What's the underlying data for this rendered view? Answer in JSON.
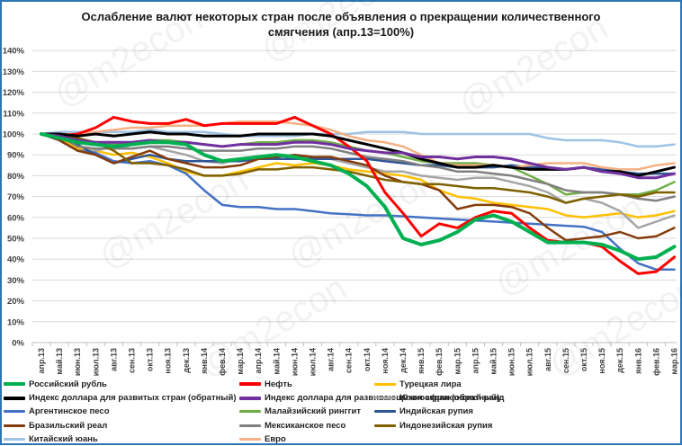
{
  "title_line1": "Ослабление валют некоторых стран после объявления о прекращении количественного",
  "title_line2": "смягчения  (апр.13=100%)",
  "watermark": "@m2econ",
  "chart_data": {
    "type": "line",
    "title": "Ослабление валют некоторых стран после объявления о прекращении количественного смягчения (апр.13=100%)",
    "xlabel": "",
    "ylabel": "",
    "ylim": [
      0,
      140
    ],
    "yticks": [
      "0%",
      "10%",
      "20%",
      "30%",
      "40%",
      "50%",
      "60%",
      "70%",
      "80%",
      "90%",
      "100%",
      "110%",
      "120%",
      "130%",
      "140%"
    ],
    "grid": true,
    "legend_position": "bottom",
    "categories": [
      "апр.13",
      "май.13",
      "июн.13",
      "июл.13",
      "авг.13",
      "сен.13",
      "окт.13",
      "ноя.13",
      "дек.13",
      "янв.14",
      "фев.14",
      "мар.14",
      "апр.14",
      "май.14",
      "июн.14",
      "июл.14",
      "авг.14",
      "сен.14",
      "окт.14",
      "ноя.14",
      "дек.14",
      "янв.15",
      "фев.15",
      "мар.15",
      "апр.15",
      "май.15",
      "июн.15",
      "июл.15",
      "авг.15",
      "сен.15",
      "окт.15",
      "ноя.15",
      "дек.15",
      "янв.16",
      "фев.16",
      "мар.16"
    ],
    "series": [
      {
        "name": "Российский рубль",
        "color": "#00b050",
        "width": 4,
        "values": [
          100,
          98,
          96,
          95,
          94,
          95,
          96,
          96,
          95,
          90,
          87,
          88,
          89,
          90,
          89,
          87,
          85,
          81,
          75,
          65,
          50,
          47,
          49,
          53,
          59,
          61,
          58,
          53,
          48,
          48,
          48,
          47,
          44,
          40,
          41,
          46
        ]
      },
      {
        "name": "Нефть",
        "color": "#ff0000",
        "width": 3,
        "values": [
          100,
          99,
          100,
          103,
          108,
          106,
          105,
          105,
          107,
          104,
          105,
          105,
          105,
          105,
          108,
          104,
          100,
          94,
          87,
          72,
          62,
          51,
          57,
          55,
          60,
          63,
          62,
          55,
          49,
          48,
          48,
          46,
          39,
          33,
          34,
          41
        ]
      },
      {
        "name": "Турецкая лира",
        "color": "#ffc000",
        "width": 2.5,
        "values": [
          100,
          98,
          93,
          92,
          90,
          91,
          89,
          86,
          82,
          80,
          80,
          82,
          84,
          86,
          85,
          86,
          85,
          83,
          82,
          81,
          80,
          78,
          73,
          70,
          69,
          67,
          66,
          65,
          64,
          61,
          60,
          61,
          62,
          60,
          61,
          63
        ]
      },
      {
        "name": "Индекс доллара для развитых стран (обратный)",
        "color": "#000000",
        "width": 3,
        "values": [
          100,
          100,
          99,
          100,
          99,
          100,
          101,
          100,
          100,
          99,
          99,
          99,
          100,
          100,
          100,
          100,
          99,
          97,
          95,
          93,
          91,
          88,
          86,
          84,
          84,
          85,
          84,
          83,
          83,
          83,
          84,
          82,
          82,
          80,
          82,
          84
        ]
      },
      {
        "name": "Индекс доллара для развивающихся стран (обратный)",
        "color": "#7030a0",
        "width": 3,
        "values": [
          100,
          99,
          97,
          96,
          96,
          96,
          97,
          96,
          96,
          95,
          94,
          95,
          95,
          95,
          96,
          96,
          95,
          93,
          92,
          91,
          91,
          89,
          89,
          88,
          89,
          89,
          88,
          86,
          84,
          83,
          84,
          82,
          81,
          79,
          79,
          81
        ]
      },
      {
        "name": "Южноафриканский ранд",
        "color": "#a6a6a6",
        "width": 2.5,
        "values": [
          100,
          97,
          92,
          92,
          94,
          93,
          94,
          92,
          90,
          87,
          86,
          88,
          89,
          90,
          89,
          89,
          88,
          86,
          84,
          82,
          82,
          80,
          79,
          78,
          79,
          79,
          77,
          75,
          72,
          67,
          69,
          67,
          63,
          55,
          58,
          61
        ]
      },
      {
        "name": "Аргентинское песо",
        "color": "#4472c4",
        "width": 2.5,
        "values": [
          100,
          97,
          92,
          91,
          87,
          86,
          87,
          85,
          81,
          73,
          66,
          65,
          65,
          64,
          64,
          63,
          62,
          61.5,
          61,
          61,
          60.5,
          60,
          59.5,
          59,
          58.5,
          58,
          57.5,
          57,
          56.5,
          56,
          55.5,
          53,
          45,
          38,
          35,
          35
        ]
      },
      {
        "name": "Малайзийский ринггит",
        "color": "#70ad47",
        "width": 2.5,
        "values": [
          100,
          99,
          97,
          96,
          95,
          96,
          97,
          97,
          96,
          95,
          94,
          95,
          96,
          96,
          97,
          97,
          96,
          94,
          92,
          91,
          89,
          87,
          86,
          86,
          86,
          85,
          84,
          80,
          76,
          71,
          72,
          72,
          71,
          71,
          73,
          77
        ]
      },
      {
        "name": "Индийская рупия",
        "color": "#2f5597",
        "width": 2.5,
        "values": [
          100,
          98,
          95,
          90,
          86,
          88,
          90,
          88,
          87,
          87,
          87,
          87,
          88,
          88,
          88,
          88,
          88,
          88,
          88,
          87,
          86,
          85,
          85,
          84,
          84,
          84,
          85,
          84,
          84,
          83,
          84,
          83,
          82,
          81,
          81,
          81
        ]
      },
      {
        "name": "Бразильский реал",
        "color": "#843c0c",
        "width": 2.5,
        "values": [
          100,
          97,
          92,
          90,
          86,
          89,
          92,
          88,
          86,
          84,
          84,
          85,
          88,
          89,
          90,
          89,
          89,
          87,
          85,
          80,
          77,
          76,
          73,
          64,
          66,
          66,
          65,
          62,
          55,
          49,
          50,
          51,
          53,
          50,
          51,
          55
        ]
      },
      {
        "name": "Мексиканское песо",
        "color": "#808080",
        "width": 2.5,
        "values": [
          100,
          99,
          94,
          93,
          93,
          93,
          94,
          94,
          93,
          92,
          92,
          92,
          93,
          93,
          94,
          94,
          93,
          91,
          89,
          88,
          87,
          85,
          84,
          82,
          82,
          81,
          80,
          78,
          76,
          73,
          72,
          72,
          71,
          69,
          68,
          70
        ]
      },
      {
        "name": "Индонезийская рупия",
        "color": "#7f6000",
        "width": 2.5,
        "values": [
          100,
          99,
          98,
          96,
          92,
          86,
          86,
          85,
          83,
          80,
          80,
          81,
          83,
          83,
          84,
          84,
          83,
          82,
          80,
          78,
          77,
          76,
          76,
          75,
          74,
          74,
          73,
          72,
          70,
          67,
          69,
          70,
          71,
          70,
          72,
          72
        ]
      },
      {
        "name": "Китайский юань",
        "color": "#9dc3e6",
        "width": 2.5,
        "values": [
          100,
          101,
          101,
          101,
          101,
          101,
          102,
          101,
          101,
          101,
          100,
          99,
          99,
          99,
          99,
          100,
          100,
          100,
          101,
          101,
          101,
          100,
          100,
          100,
          100,
          100,
          100,
          100,
          98,
          97,
          97,
          97,
          96,
          94,
          94,
          95
        ]
      },
      {
        "name": "Евро",
        "color": "#f4b183",
        "width": 2.5,
        "values": [
          100,
          100,
          100,
          101,
          102,
          103,
          103,
          104,
          104,
          104,
          105,
          106,
          106,
          106,
          105,
          104,
          102,
          99,
          97,
          96,
          94,
          90,
          86,
          85,
          85,
          85,
          84,
          85,
          86,
          86,
          86,
          84,
          83,
          83,
          85,
          86
        ]
      }
    ]
  },
  "legend": {
    "columns": [
      [
        "Российский рубль",
        "Индекс доллара для развитых стран (обратный)",
        "Аргентинское песо",
        "Бразильский реал",
        "Китайский юань"
      ],
      [
        "Нефть",
        "Индекс доллара для развивающихся стран (обратный)",
        "Малайзийский ринггит",
        "Мексиканское песо",
        "Евро"
      ],
      [
        "Турецкая лира",
        "Южноафрикансикй ранд",
        "Индийская рупия",
        "Индонезийская рупия"
      ]
    ]
  }
}
